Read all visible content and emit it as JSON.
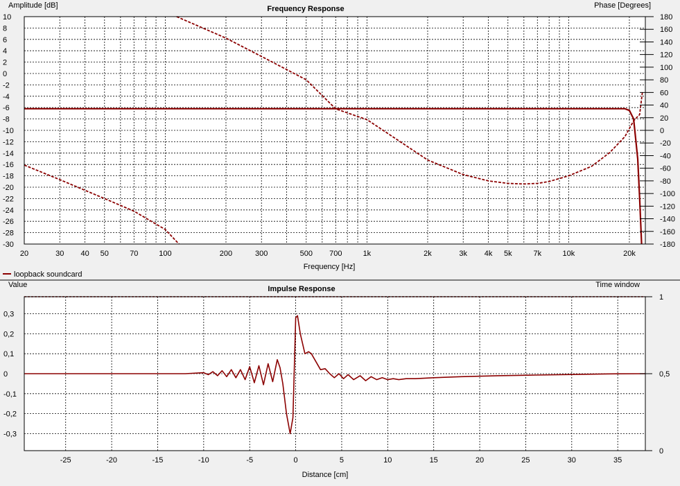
{
  "chart_data": [
    {
      "type": "line",
      "title": "Frequency Response",
      "xlabel": "Frequency [Hz]",
      "ylabel": "Amplitude [dB]",
      "y2label": "Phase [Degrees]",
      "x_scale": "log",
      "xlim": [
        20,
        24000
      ],
      "ylim": [
        -30,
        10
      ],
      "y2lim": [
        -180,
        180
      ],
      "x_tick_values": [
        20,
        30,
        40,
        50,
        70,
        100,
        200,
        300,
        500,
        700,
        1000,
        2000,
        3000,
        4000,
        5000,
        7000,
        10000,
        20000
      ],
      "x_tick_labels": [
        "20",
        "30",
        "40",
        "50",
        "70",
        "100",
        "200",
        "300",
        "500",
        "700",
        "1k",
        "2k",
        "3k",
        "4k",
        "5k",
        "7k",
        "10k",
        "20k"
      ],
      "y_tick_values": [
        10,
        8,
        6,
        4,
        2,
        0,
        -2,
        -4,
        -6,
        -8,
        -10,
        -12,
        -14,
        -16,
        -18,
        -20,
        -22,
        -24,
        -26,
        -28,
        -30
      ],
      "y_tick_labels": [
        "10",
        "8",
        "6",
        "4",
        "2",
        "0",
        "-2",
        "-4",
        "-6",
        "-8",
        "-10",
        "-12",
        "-14",
        "-16",
        "-18",
        "-20",
        "-22",
        "-24",
        "-26",
        "-28",
        "-30"
      ],
      "y2_tick_values": [
        180,
        160,
        140,
        120,
        100,
        80,
        60,
        40,
        20,
        0,
        -20,
        -40,
        -60,
        -80,
        -100,
        -120,
        -140,
        -160,
        -180
      ],
      "y2_tick_labels": [
        "180",
        "160",
        "140",
        "120",
        "100",
        "80",
        "60",
        "40",
        "20",
        "0",
        "-20",
        "-40",
        "-60",
        "-80",
        "-100",
        "-120",
        "-140",
        "-160",
        "-180"
      ],
      "grid": true,
      "legend": [
        "loopback soundcard"
      ],
      "series": [
        {
          "name": "loopback soundcard",
          "role": "amplitude",
          "axis": "left",
          "style": "solid",
          "x": [
            20,
            100,
            1000,
            10000,
            19000,
            20000,
            21000,
            22000,
            22500,
            23000
          ],
          "y": [
            -6.2,
            -6.2,
            -6.2,
            -6.2,
            -6.2,
            -6.5,
            -8,
            -15,
            -22,
            -30
          ]
        },
        {
          "role": "phase",
          "axis": "right",
          "style": "dashed",
          "segments": [
            {
              "x": [
                20,
                30,
                50,
                70,
                100,
                117
              ],
              "y": [
                -55,
                -78,
                -108,
                -128,
                -157,
                -180
              ]
            },
            {
              "x": [
                114,
                200,
                300,
                500,
                700,
                1000,
                2000,
                3000,
                4000,
                5000,
                6000,
                7000,
                8000,
                10000,
                13000,
                16000,
                19000,
                21000,
                22500,
                23200
              ],
              "y": [
                180,
                146,
                117,
                80,
                34,
                17,
                -47,
                -70,
                -80,
                -84,
                -85,
                -84,
                -81,
                -72,
                -57,
                -35,
                -10,
                15,
                25,
                60
              ]
            }
          ]
        }
      ]
    },
    {
      "type": "line",
      "title": "Impulse Response",
      "xlabel": "Distance [cm]",
      "ylabel": "Value",
      "y2label": "Time window",
      "xlim": [
        -29.5,
        38
      ],
      "ylim": [
        -0.385,
        0.385
      ],
      "y2lim": [
        0,
        1
      ],
      "x_tick_values": [
        -25,
        -20,
        -15,
        -10,
        -5,
        0,
        5,
        10,
        15,
        20,
        25,
        30,
        35
      ],
      "x_tick_labels": [
        "-25",
        "-20",
        "-15",
        "-10",
        "-5",
        "0",
        "5",
        "10",
        "15",
        "20",
        "25",
        "30",
        "35"
      ],
      "y_tick_values": [
        0.3,
        0.2,
        0.1,
        0,
        -0.1,
        -0.2,
        -0.3
      ],
      "y_tick_labels": [
        "0,3",
        "0,2",
        "0,1",
        "0",
        "-0,1",
        "-0,2",
        "-0,3"
      ],
      "y2_tick_values": [
        1,
        0.5,
        0
      ],
      "y2_tick_labels": [
        "1",
        "0,5",
        "0"
      ],
      "grid": true,
      "series": [
        {
          "role": "impulse",
          "axis": "left",
          "style": "solid",
          "x": [
            -29.5,
            -12,
            -10,
            -9.5,
            -9,
            -8.5,
            -8,
            -7.5,
            -7,
            -6.5,
            -6,
            -5.5,
            -5,
            -4.5,
            -4,
            -3.5,
            -3,
            -2.5,
            -2,
            -1.7,
            -1.4,
            -1.0,
            -0.6,
            -0.3,
            0,
            0.2,
            0.5,
            1.0,
            1.4,
            1.7,
            2.2,
            2.7,
            3.2,
            3.7,
            4.2,
            4.7,
            5.2,
            5.7,
            6.3,
            7,
            7.6,
            8.2,
            8.8,
            9.4,
            10,
            10.6,
            11.2,
            12,
            13,
            15,
            18,
            22,
            26,
            30,
            34,
            38
          ],
          "y": [
            0,
            0,
            0.005,
            -0.005,
            0.01,
            -0.01,
            0.015,
            -0.015,
            0.02,
            -0.02,
            0.02,
            -0.03,
            0.035,
            -0.045,
            0.04,
            -0.055,
            0.05,
            -0.04,
            0.07,
            0.03,
            -0.05,
            -0.2,
            -0.3,
            -0.22,
            0.28,
            0.29,
            0.2,
            0.1,
            0.11,
            0.1,
            0.06,
            0.02,
            0.025,
            0.0,
            -0.02,
            0.0,
            -0.025,
            -0.005,
            -0.03,
            -0.01,
            -0.035,
            -0.015,
            -0.03,
            -0.02,
            -0.03,
            -0.025,
            -0.03,
            -0.025,
            -0.025,
            -0.02,
            -0.015,
            -0.01,
            -0.007,
            -0.004,
            -0.001,
            0
          ]
        },
        {
          "role": "time-window",
          "axis": "right",
          "style": "dashed",
          "x": [
            -29.5,
            0,
            0.01,
            38
          ],
          "y": [
            1,
            1,
            1,
            1
          ]
        }
      ]
    }
  ],
  "colors": {
    "series": "#8b0000",
    "grid": "#000000",
    "background": "#ffffff"
  }
}
